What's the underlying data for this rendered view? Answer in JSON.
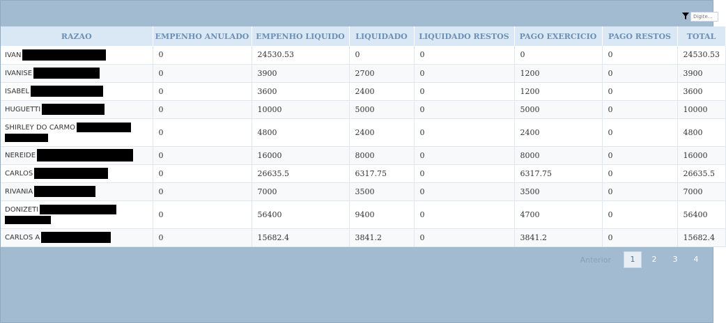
{
  "filter": {
    "placeholder": "Digite..."
  },
  "table": {
    "columns": [
      "RAZAO",
      "EMPENHO ANULADO",
      "EMPENHO LIQUIDO",
      "LIQUIDADO",
      "LIQUIDADO RESTOS",
      "PAGO EXERCICIO",
      "PAGO RESTOS",
      "TOTAL"
    ],
    "rows": [
      {
        "razao": "IVAN",
        "empenho_anulado": "0",
        "empenho_liquido": "24530.53",
        "liquidado": "0",
        "liquidado_restos": "0",
        "pago_exercicio": "0",
        "pago_restos": "0",
        "total": "24530.53"
      },
      {
        "razao": "IVANISE",
        "empenho_anulado": "0",
        "empenho_liquido": "3900",
        "liquidado": "2700",
        "liquidado_restos": "0",
        "pago_exercicio": "1200",
        "pago_restos": "0",
        "total": "3900"
      },
      {
        "razao": "ISABEL",
        "empenho_anulado": "0",
        "empenho_liquido": "3600",
        "liquidado": "2400",
        "liquidado_restos": "0",
        "pago_exercicio": "1200",
        "pago_restos": "0",
        "total": "3600"
      },
      {
        "razao": "HUGUETTI",
        "empenho_anulado": "0",
        "empenho_liquido": "10000",
        "liquidado": "5000",
        "liquidado_restos": "0",
        "pago_exercicio": "5000",
        "pago_restos": "0",
        "total": "10000"
      },
      {
        "razao": "SHIRLEY DO CARMO",
        "empenho_anulado": "0",
        "empenho_liquido": "4800",
        "liquidado": "2400",
        "liquidado_restos": "0",
        "pago_exercicio": "2400",
        "pago_restos": "0",
        "total": "4800"
      },
      {
        "razao": "NEREIDE",
        "empenho_anulado": "0",
        "empenho_liquido": "16000",
        "liquidado": "8000",
        "liquidado_restos": "0",
        "pago_exercicio": "8000",
        "pago_restos": "0",
        "total": "16000"
      },
      {
        "razao": "CARLOS",
        "empenho_anulado": "0",
        "empenho_liquido": "26635.5",
        "liquidado": "6317.75",
        "liquidado_restos": "0",
        "pago_exercicio": "6317.75",
        "pago_restos": "0",
        "total": "26635.5"
      },
      {
        "razao": "RIVANIA",
        "empenho_anulado": "0",
        "empenho_liquido": "7000",
        "liquidado": "3500",
        "liquidado_restos": "0",
        "pago_exercicio": "3500",
        "pago_restos": "0",
        "total": "7000"
      },
      {
        "razao": "DONIZETI",
        "empenho_anulado": "0",
        "empenho_liquido": "56400",
        "liquidado": "9400",
        "liquidado_restos": "0",
        "pago_exercicio": "4700",
        "pago_restos": "0",
        "total": "56400"
      },
      {
        "razao": "CARLOS A",
        "empenho_anulado": "0",
        "empenho_liquido": "15682.4",
        "liquidado": "3841.2",
        "liquidado_restos": "0",
        "pago_exercicio": "3841.2",
        "pago_restos": "0",
        "total": "15682.4"
      }
    ]
  },
  "pagination": {
    "previous_label": "Anterior",
    "pages": [
      "1",
      "2",
      "3",
      "4"
    ],
    "current": "1"
  }
}
